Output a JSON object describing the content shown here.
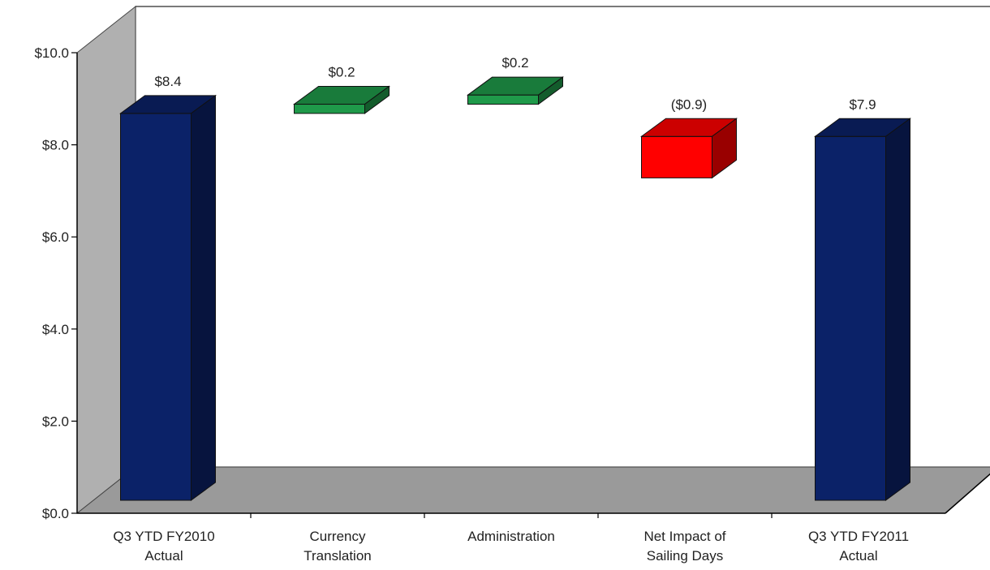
{
  "chart_data": {
    "type": "bar",
    "subtype": "waterfall",
    "categories": [
      [
        "Q3 YTD FY2010",
        "Actual"
      ],
      [
        "Currency",
        "Translation"
      ],
      [
        "Administration"
      ],
      [
        "Net Impact of",
        "Sailing Days"
      ],
      [
        "Q3 YTD FY2011",
        "Actual"
      ]
    ],
    "bars": [
      {
        "kind": "total",
        "base": 0,
        "value": 8.4,
        "label": "$8.4"
      },
      {
        "kind": "increase",
        "base": 8.4,
        "value": 0.2,
        "label": "$0.2"
      },
      {
        "kind": "increase",
        "base": 8.6,
        "value": 0.2,
        "label": "$0.2"
      },
      {
        "kind": "decrease",
        "base": 7.9,
        "value": -0.9,
        "label": "($0.9)"
      },
      {
        "kind": "total",
        "base": 0,
        "value": 7.9,
        "label": "$7.9"
      }
    ],
    "yticks": [
      "$0.0",
      "$2.0",
      "$4.0",
      "$6.0",
      "$8.0",
      "$10.0"
    ],
    "ylim": [
      0,
      10
    ],
    "title": "",
    "xlabel": "",
    "ylabel": "",
    "grid": false,
    "colors": {
      "total": "#0b2268",
      "increase": "#1f9a4a",
      "decrease": "#ff0000",
      "wall": "#b0b0b0",
      "floor": "#9a9a9a"
    }
  }
}
